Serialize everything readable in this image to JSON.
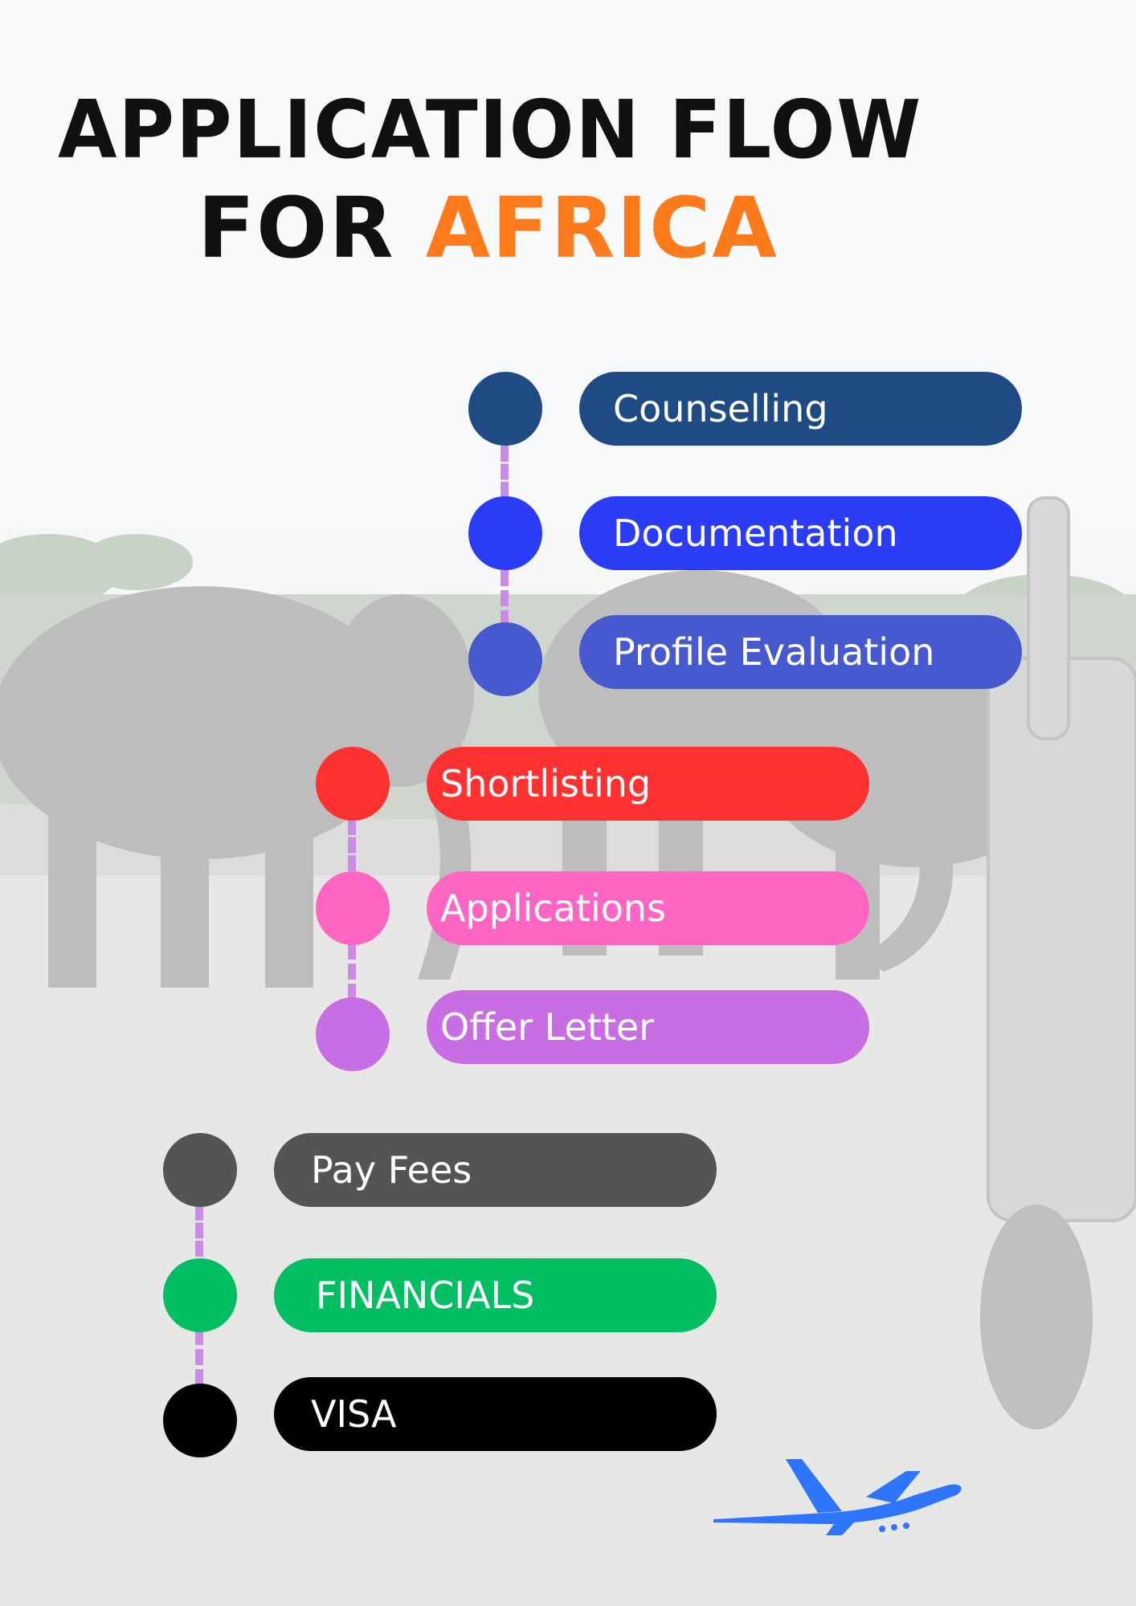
{
  "title": {
    "line1": "APPLICATION FLOW",
    "line2_prefix": "FOR ",
    "line2_highlight": "AFRICA",
    "text_color": "#111111",
    "highlight_color": "#ff7a1a"
  },
  "steps": [
    {
      "label": "Counselling",
      "color": "#1f4b85"
    },
    {
      "label": "Documentation",
      "color": "#2b3cf6"
    },
    {
      "label": "Profile Evaluation",
      "color": "#4659cf"
    },
    {
      "label": "Shortlisting",
      "color": "#ff3131"
    },
    {
      "label": "Applications",
      "color": "#ff66c4"
    },
    {
      "label": "Offer Letter",
      "color": "#c86de3"
    },
    {
      "label": "Pay Fees",
      "color": "#545454"
    },
    {
      "label": "FINANCIALS",
      "color": "#00bf63"
    },
    {
      "label": "VISA",
      "color": "#000000"
    }
  ],
  "connector_color": "#c98be6",
  "decorations": {
    "background": "faded-safari-elephants-photo",
    "plane_icon": "airplane-icon",
    "plane_color": "#2d74ff"
  }
}
